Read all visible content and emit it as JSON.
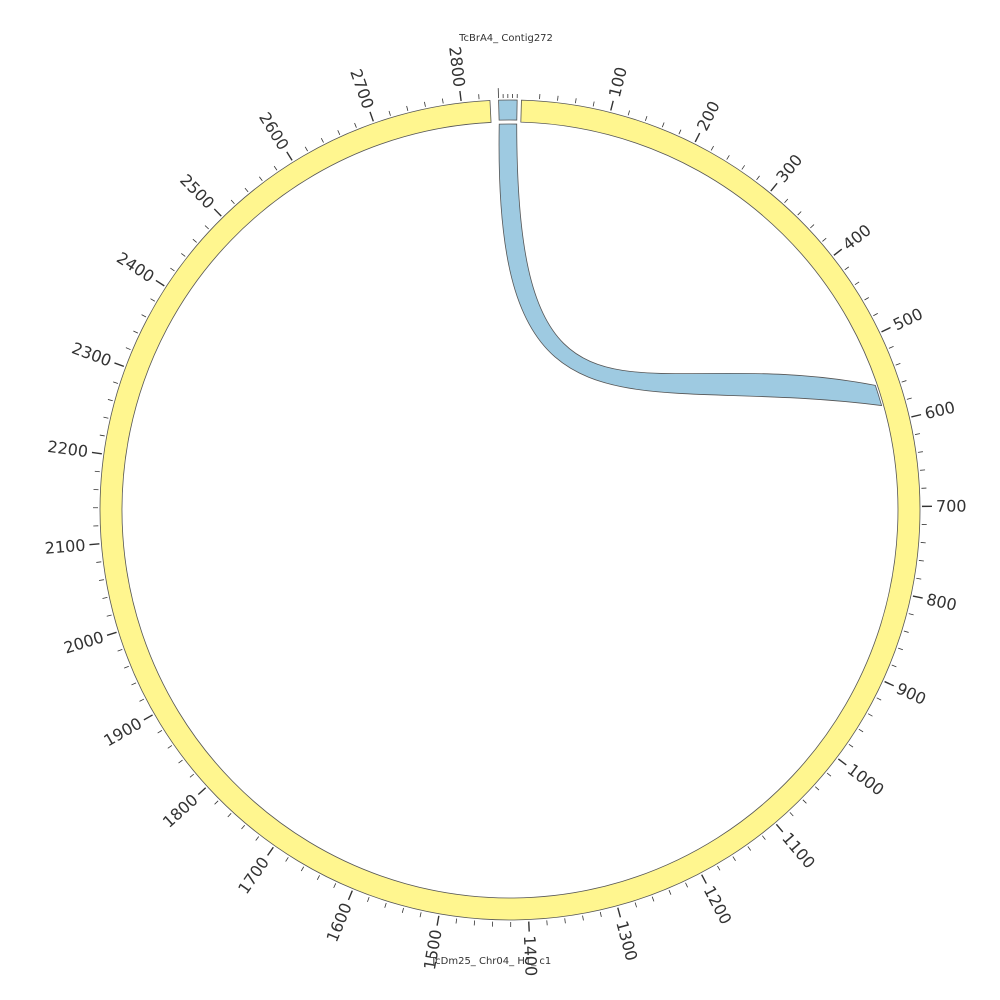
{
  "diagram": {
    "type": "circos",
    "segments": [
      {
        "name": "TcBrA4_ Contig272",
        "start": 0,
        "end": 20,
        "color": "#9ecae1"
      },
      {
        "name": "TcDm25_ Chr04_ H1_ c1",
        "start": 0,
        "end": 2832,
        "color": "#fff68f"
      }
    ],
    "labels": {
      "top": "TcBrA4_ Contig272",
      "bottom": "TcDm25_ Chr04_ H1_ c1"
    },
    "tick_labels": [
      "100",
      "200",
      "300",
      "400",
      "500",
      "600",
      "700",
      "800",
      "900",
      "1000",
      "1100",
      "1200",
      "1300",
      "1400",
      "1500",
      "1600",
      "1700",
      "1800",
      "1900",
      "2000",
      "2100",
      "2200",
      "2300",
      "2400",
      "2500",
      "2600",
      "2700",
      "2800"
    ],
    "tick_major_step": 100,
    "tick_minor_step": 20,
    "links": [
      {
        "source": "TcBrA4_ Contig272",
        "source_range": [
          0,
          20
        ],
        "target": "TcDm25_ Chr04_ H1_ c1",
        "target_range": [
          554,
          579
        ],
        "color": "#9ecae1"
      }
    ],
    "colors": {
      "chromosome_fill": "#fff68f",
      "contig_fill": "#9ecae1",
      "link_fill": "#9ecae1",
      "outline": "#555555",
      "tick": "#333333"
    }
  }
}
